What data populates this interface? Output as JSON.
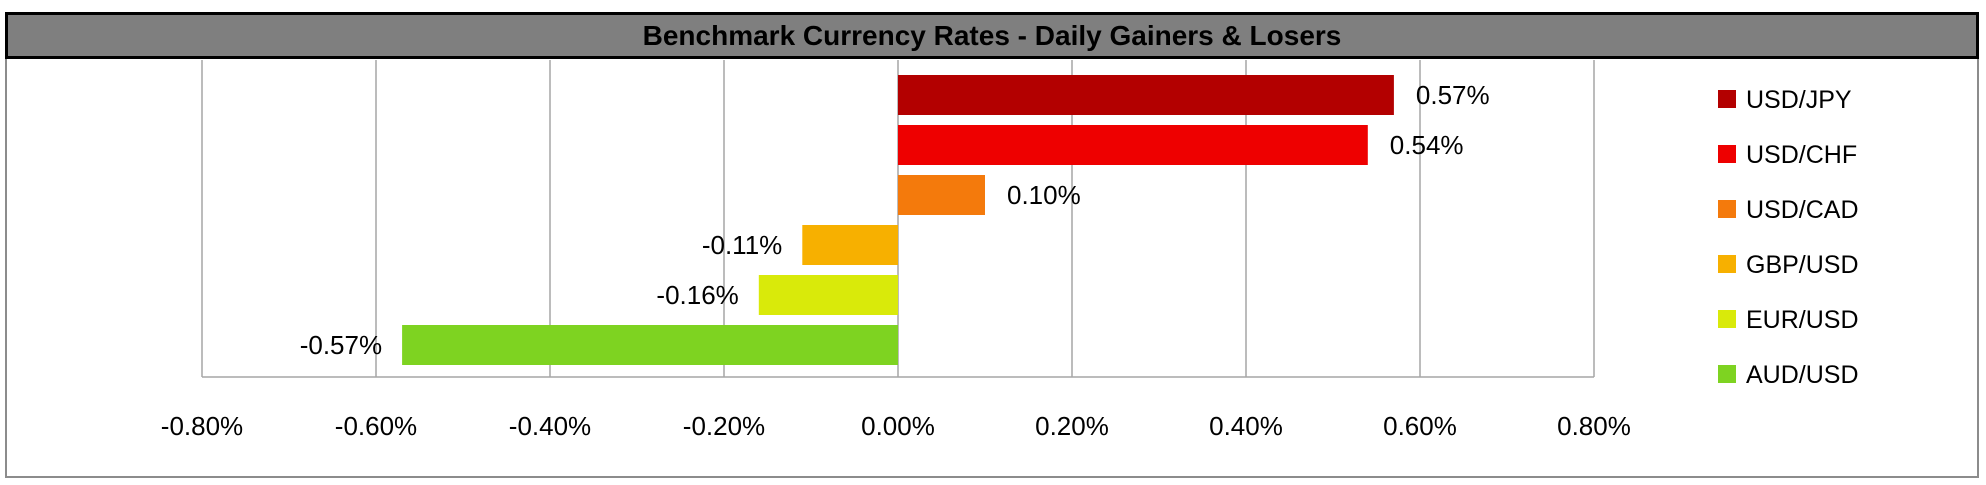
{
  "chart_data": {
    "type": "bar",
    "orientation": "horizontal",
    "title": "Benchmark Currency Rates - Daily Gainers & Losers",
    "categories": [
      "USD/JPY",
      "USD/CHF",
      "USD/CAD",
      "GBP/USD",
      "EUR/USD",
      "AUD/USD"
    ],
    "values": [
      0.57,
      0.54,
      0.1,
      -0.11,
      -0.16,
      -0.57
    ],
    "data_labels": [
      "0.57%",
      "0.54%",
      "0.10%",
      "-0.11%",
      "-0.16%",
      "-0.57%"
    ],
    "colors": [
      "#b30000",
      "#ee0000",
      "#f47a0c",
      "#f7b000",
      "#d9ea0a",
      "#7ed321"
    ],
    "xlim": [
      -0.8,
      0.8
    ],
    "xticks": [
      -0.8,
      -0.6,
      -0.4,
      -0.2,
      0,
      0.2,
      0.4,
      0.6,
      0.8
    ],
    "xtick_labels": [
      "-0.80%",
      "-0.60%",
      "-0.40%",
      "-0.20%",
      "0.00%",
      "0.20%",
      "0.40%",
      "0.60%",
      "0.80%"
    ],
    "grid": true,
    "legend_position": "right"
  }
}
